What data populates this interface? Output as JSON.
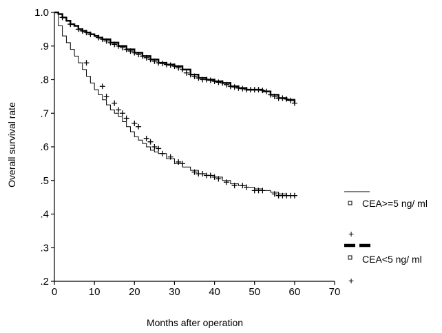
{
  "chart_data": {
    "type": "line",
    "subtype": "kaplan-meier",
    "xlabel": "Months after operation",
    "ylabel": "Overall survival rate",
    "xlim": [
      0,
      70
    ],
    "ylim": [
      0.2,
      1.0
    ],
    "x_ticks": [
      0,
      10,
      20,
      30,
      40,
      50,
      60,
      70
    ],
    "x_tick_labels": [
      "0",
      "10",
      "20",
      "30",
      "40",
      "50",
      "60",
      "70"
    ],
    "y_ticks": [
      0.2,
      0.3,
      0.4,
      0.5,
      0.6,
      0.7,
      0.8,
      0.9,
      1.0
    ],
    "y_tick_labels": [
      ".2",
      ".3",
      ".4",
      ".5",
      ".6",
      ".7",
      ".8",
      ".9",
      "1.0"
    ],
    "grid": false,
    "legend_position": "right",
    "series": [
      {
        "name": "CEA>=5 ng/ ml",
        "line_style": "thin-solid",
        "censor_marker": "+",
        "x": [
          0,
          1,
          2,
          3,
          4,
          5,
          6,
          7,
          8,
          9,
          10,
          11,
          12,
          13,
          14,
          15,
          16,
          17,
          18,
          19,
          20,
          21,
          22,
          23,
          24,
          25,
          26,
          28,
          30,
          32,
          34,
          36,
          38,
          40,
          42,
          44,
          46,
          48,
          50,
          52,
          54,
          56,
          58,
          60
        ],
        "y": [
          1.0,
          0.96,
          0.93,
          0.91,
          0.89,
          0.87,
          0.85,
          0.83,
          0.81,
          0.79,
          0.77,
          0.755,
          0.74,
          0.725,
          0.71,
          0.7,
          0.69,
          0.675,
          0.66,
          0.645,
          0.63,
          0.62,
          0.61,
          0.6,
          0.59,
          0.585,
          0.58,
          0.565,
          0.55,
          0.54,
          0.53,
          0.52,
          0.515,
          0.51,
          0.5,
          0.49,
          0.485,
          0.48,
          0.475,
          0.47,
          0.465,
          0.46,
          0.455,
          0.455
        ],
        "censored_x": [
          8,
          12,
          13,
          15,
          16,
          17,
          18,
          20,
          21,
          23,
          24,
          25,
          26,
          27,
          29,
          31,
          32,
          35,
          36,
          37,
          38,
          39,
          40,
          41,
          43,
          45,
          47,
          48,
          50,
          51,
          52,
          55,
          56,
          57,
          58,
          59,
          60
        ],
        "censored_y": [
          0.85,
          0.78,
          0.75,
          0.73,
          0.71,
          0.7,
          0.685,
          0.67,
          0.66,
          0.625,
          0.615,
          0.6,
          0.595,
          0.58,
          0.57,
          0.555,
          0.55,
          0.525,
          0.52,
          0.52,
          0.515,
          0.515,
          0.51,
          0.505,
          0.495,
          0.485,
          0.485,
          0.48,
          0.47,
          0.47,
          0.47,
          0.46,
          0.455,
          0.455,
          0.455,
          0.455,
          0.455
        ]
      },
      {
        "name": "CEA<5 ng/ ml",
        "line_style": "thick-solid",
        "censor_marker": "+",
        "x": [
          0,
          1,
          2,
          3,
          4,
          5,
          6,
          7,
          8,
          9,
          10,
          11,
          12,
          14,
          16,
          18,
          20,
          22,
          24,
          26,
          28,
          30,
          32,
          34,
          36,
          38,
          40,
          42,
          44,
          46,
          48,
          50,
          52,
          54,
          56,
          58,
          60
        ],
        "y": [
          1.0,
          0.995,
          0.985,
          0.975,
          0.965,
          0.96,
          0.95,
          0.945,
          0.94,
          0.935,
          0.93,
          0.925,
          0.92,
          0.91,
          0.9,
          0.89,
          0.88,
          0.87,
          0.86,
          0.85,
          0.845,
          0.84,
          0.83,
          0.815,
          0.805,
          0.8,
          0.795,
          0.79,
          0.78,
          0.775,
          0.77,
          0.77,
          0.765,
          0.755,
          0.745,
          0.74,
          0.73
        ],
        "censored_x": [
          2,
          4,
          6,
          7,
          8,
          9,
          11,
          12,
          13,
          14,
          15,
          16,
          17,
          18,
          19,
          20,
          21,
          22,
          23,
          24,
          25,
          26,
          27,
          28,
          29,
          30,
          31,
          32,
          33,
          34,
          35,
          36,
          37,
          38,
          39,
          40,
          41,
          42,
          43,
          44,
          45,
          46,
          47,
          48,
          49,
          50,
          51,
          52,
          53,
          54,
          55,
          56,
          57,
          58,
          59,
          60
        ],
        "censored_y": [
          0.985,
          0.965,
          0.95,
          0.945,
          0.94,
          0.935,
          0.925,
          0.92,
          0.915,
          0.91,
          0.905,
          0.9,
          0.895,
          0.89,
          0.885,
          0.88,
          0.875,
          0.87,
          0.865,
          0.86,
          0.855,
          0.85,
          0.848,
          0.845,
          0.843,
          0.84,
          0.835,
          0.83,
          0.82,
          0.815,
          0.81,
          0.805,
          0.8,
          0.8,
          0.798,
          0.795,
          0.792,
          0.79,
          0.785,
          0.78,
          0.778,
          0.775,
          0.773,
          0.77,
          0.77,
          0.77,
          0.77,
          0.768,
          0.765,
          0.755,
          0.75,
          0.745,
          0.745,
          0.742,
          0.738,
          0.73
        ]
      }
    ]
  }
}
